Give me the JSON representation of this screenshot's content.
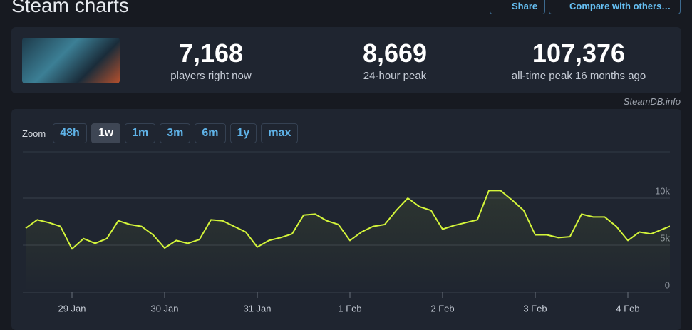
{
  "header": {
    "title": "Steam charts",
    "buttons": [
      "Share",
      "Compare with others…"
    ]
  },
  "stats": [
    {
      "value": "7,168",
      "label": "players right now"
    },
    {
      "value": "8,669",
      "label": "24-hour peak"
    },
    {
      "value": "107,376",
      "label": "all-time peak 16 months ago"
    }
  ],
  "credit": "SteamDB.info",
  "zoom": {
    "label": "Zoom",
    "options": [
      "48h",
      "1w",
      "1m",
      "3m",
      "6m",
      "1y",
      "max"
    ],
    "active": 1
  },
  "chart_data": {
    "type": "line",
    "color": "#d4f53a",
    "grid": true,
    "categories": [
      null,
      null,
      null,
      null,
      "29 Jan",
      null,
      null,
      null,
      null,
      null,
      null,
      null,
      "30 Jan",
      null,
      null,
      null,
      null,
      null,
      null,
      null,
      "31 Jan",
      null,
      null,
      null,
      null,
      null,
      null,
      null,
      "1 Feb",
      null,
      null,
      null,
      null,
      null,
      null,
      null,
      "2 Feb",
      null,
      null,
      null,
      null,
      null,
      null,
      null,
      "3 Feb",
      null,
      null,
      null,
      null,
      null,
      null,
      null,
      "4 Feb",
      null,
      null,
      null,
      null
    ],
    "values": [
      6800,
      7700,
      7400,
      7000,
      4600,
      5700,
      5200,
      5700,
      7600,
      7200,
      7000,
      6100,
      4700,
      5500,
      5200,
      5600,
      7700,
      7600,
      7000,
      6400,
      4800,
      5500,
      5800,
      6200,
      8200,
      8300,
      7600,
      7200,
      5500,
      6400,
      7000,
      7200,
      8700,
      10000,
      9100,
      8700,
      6700,
      7100,
      7400,
      7700,
      10800,
      10800,
      9800,
      8700,
      6100,
      6100,
      5800,
      5900,
      8300,
      8000,
      8000,
      7000,
      5500,
      6400,
      6200,
      6700,
      7200
    ],
    "ylim": [
      0,
      15000
    ],
    "yticks": [
      0,
      {
        "value": 5000,
        "label": "5k"
      },
      {
        "value": 10000,
        "label": "10k"
      }
    ]
  }
}
